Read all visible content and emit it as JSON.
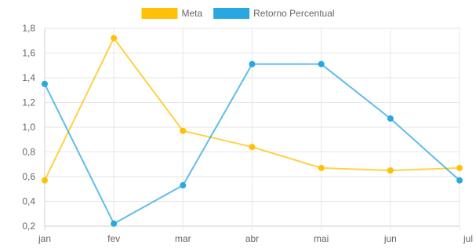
{
  "chart_data": {
    "type": "line",
    "categories": [
      "jan",
      "fev",
      "mar",
      "abr",
      "mai",
      "jun",
      "jul"
    ],
    "series": [
      {
        "name": "Meta",
        "color": "#FFC107",
        "values": [
          0.57,
          1.72,
          0.97,
          0.84,
          0.67,
          0.65,
          0.67
        ]
      },
      {
        "name": "Retorno Percentual",
        "color": "#29A7E1",
        "values": [
          1.35,
          0.22,
          0.53,
          1.51,
          1.51,
          1.07,
          0.57
        ]
      }
    ],
    "y_ticks": [
      "0,2",
      "0,4",
      "0,6",
      "0,8",
      "1,0",
      "1,2",
      "1,4",
      "1,6",
      "1,8"
    ],
    "ylim": [
      0.2,
      1.8
    ],
    "grid": true,
    "legend_position": "top-center"
  }
}
